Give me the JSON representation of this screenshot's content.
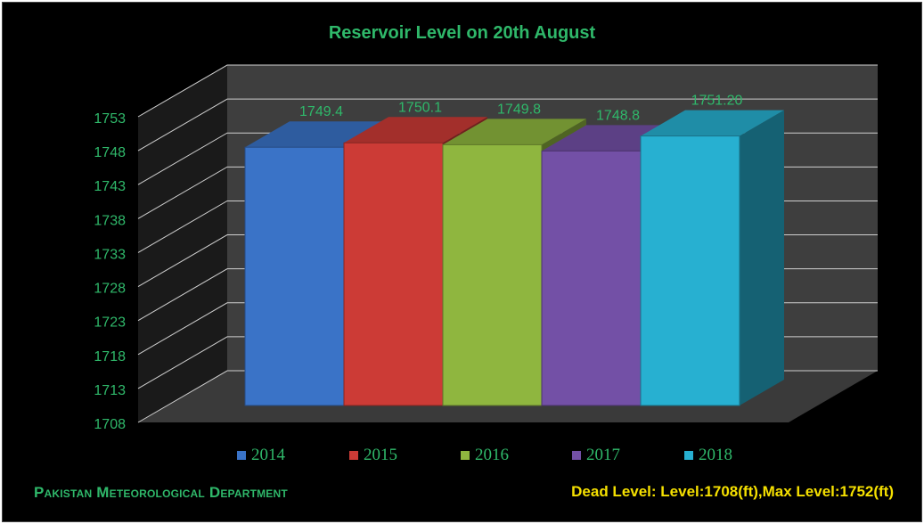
{
  "chart_data": {
    "type": "bar",
    "title": "Reservoir Level on  20th August",
    "categories": [
      "2014",
      "2015",
      "2016",
      "2017",
      "2018"
    ],
    "values": [
      1749.4,
      1750.1,
      1749.8,
      1748.8,
      1751.2
    ],
    "data_labels": [
      "1749.4",
      "1750.1",
      "1749.8",
      "1748.8",
      "1751.20"
    ],
    "ylim": [
      1708,
      1753
    ],
    "yticks": [
      "1708",
      "1713",
      "1718",
      "1723",
      "1728",
      "1733",
      "1738",
      "1743",
      "1748",
      "1753"
    ],
    "ytick_values": [
      1708,
      1713,
      1718,
      1723,
      1728,
      1733,
      1738,
      1743,
      1748,
      1753
    ],
    "grid": true,
    "style": "3d-bar",
    "legend_position": "bottom",
    "colors": [
      "#3a73c7",
      "#cc3b36",
      "#8fb63f",
      "#7350a6",
      "#27b0d1"
    ]
  },
  "footer": {
    "organization": "Pakistan Meteorological Department",
    "levels_note": "Dead Level: Level:1708(ft),Max Level:1752(ft)"
  },
  "colors": {
    "background": "#000000",
    "text_green": "#2fb86a",
    "text_yellow": "#f5e000",
    "gridline": "#cfcfcf"
  }
}
